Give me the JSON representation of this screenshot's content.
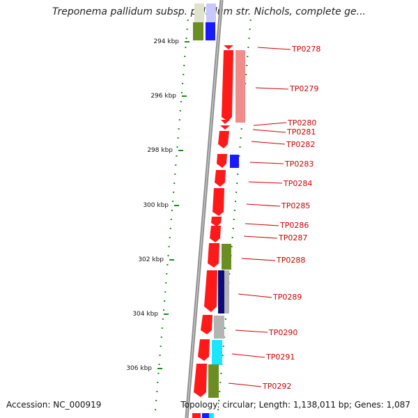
{
  "title": "Treponema pallidum subsp. pallidum str. Nichols, complete ge...",
  "footer": {
    "accession": "Accession: NC_000919",
    "topology": "Topology: circular; Length: 1,138,011 bp; Genes: 1,087"
  },
  "scale_labels": [
    "294 kbp",
    "296 kbp",
    "298 kbp",
    "300 kbp",
    "302 kbp",
    "304 kbp",
    "306 kbp"
  ],
  "gene_labels": [
    "TP0278",
    "TP0279",
    "TP0280",
    "TP0281",
    "TP0282",
    "TP0283",
    "TP0284",
    "TP0285",
    "TP0286",
    "TP0287",
    "TP0288",
    "TP0289",
    "TP0290",
    "TP0291",
    "TP0292"
  ],
  "colors": {
    "gene_red": "#ff1a1a",
    "gene_pink": "#f08c8c",
    "green": "#6b8e23",
    "blue": "#1a1aff",
    "navy": "#0a0a78",
    "grey": "#b4b4b4",
    "cyan": "#1ae6ff",
    "label": "#cc0000",
    "tick": "#1a8c1a",
    "backbone": "#8a8a8a"
  }
}
